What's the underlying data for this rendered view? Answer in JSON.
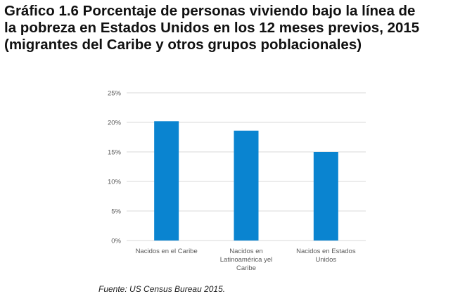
{
  "title_lines": [
    "Gráfico 1.6 Porcentaje de personas viviendo bajo la línea de",
    "la pobreza en Estados Unidos en los 12 meses previos, 2015",
    "(migrantes del Caribe y otros grupos poblacionales)"
  ],
  "source": "Fuente: US Census Bureau 2015.",
  "colors": {
    "bar": "#0a84d0",
    "grid": "#d9d9d9",
    "axis_text": "#595959"
  },
  "chart_data": {
    "type": "bar",
    "categories": [
      [
        "Nacidos en el Caribe"
      ],
      [
        "Nacidos en",
        "Latinoamérica yel",
        "Caribe"
      ],
      [
        "Nacidos en Estados",
        "Unidos"
      ]
    ],
    "values": [
      20.2,
      18.6,
      15.0
    ],
    "ylim": [
      0,
      25
    ],
    "yticks": [
      0,
      5,
      10,
      15,
      20,
      25
    ],
    "ytick_labels": [
      "0%",
      "5%",
      "10%",
      "15%",
      "20%",
      "25%"
    ],
    "grid": true
  }
}
